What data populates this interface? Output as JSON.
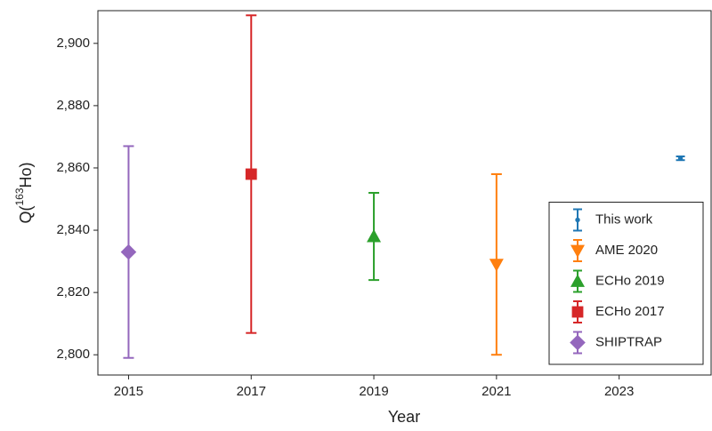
{
  "chart_data": {
    "type": "errorbar",
    "xlabel": "Year",
    "ylabel": {
      "prefix": "Q(",
      "sup": "163",
      "suffix": "Ho)"
    },
    "xlim": [
      2014.5,
      2024.5
    ],
    "ylim": [
      2793.5,
      2910.5
    ],
    "xticks": [
      2015,
      2017,
      2019,
      2021,
      2023
    ],
    "yticks": [
      {
        "value": 2800,
        "label": "2,800"
      },
      {
        "value": 2820,
        "label": "2,820"
      },
      {
        "value": 2840,
        "label": "2,840"
      },
      {
        "value": 2860,
        "label": "2,860"
      },
      {
        "value": 2880,
        "label": "2,880"
      },
      {
        "value": 2900,
        "label": "2,900"
      }
    ],
    "legend": "lower right",
    "series": [
      {
        "name": "This work",
        "color": "#1f77b4",
        "marker": "circle",
        "x": [
          2024
        ],
        "values": [
          2863.1
        ],
        "errors": [
          0.6
        ]
      },
      {
        "name": "AME 2020",
        "color": "#ff7f0e",
        "marker": "triangle-down",
        "x": [
          2021
        ],
        "values": [
          2829
        ],
        "errors": [
          29
        ]
      },
      {
        "name": "ECHo 2019",
        "color": "#2ca02c",
        "marker": "triangle-up",
        "x": [
          2019
        ],
        "values": [
          2838
        ],
        "errors": [
          14
        ]
      },
      {
        "name": "ECHo 2017",
        "color": "#d62728",
        "marker": "square",
        "x": [
          2017
        ],
        "values": [
          2858
        ],
        "errors": [
          51
        ]
      },
      {
        "name": "SHIPTRAP",
        "color": "#9467bd",
        "marker": "diamond",
        "x": [
          2015
        ],
        "values": [
          2833
        ],
        "errors": [
          34
        ]
      }
    ]
  }
}
